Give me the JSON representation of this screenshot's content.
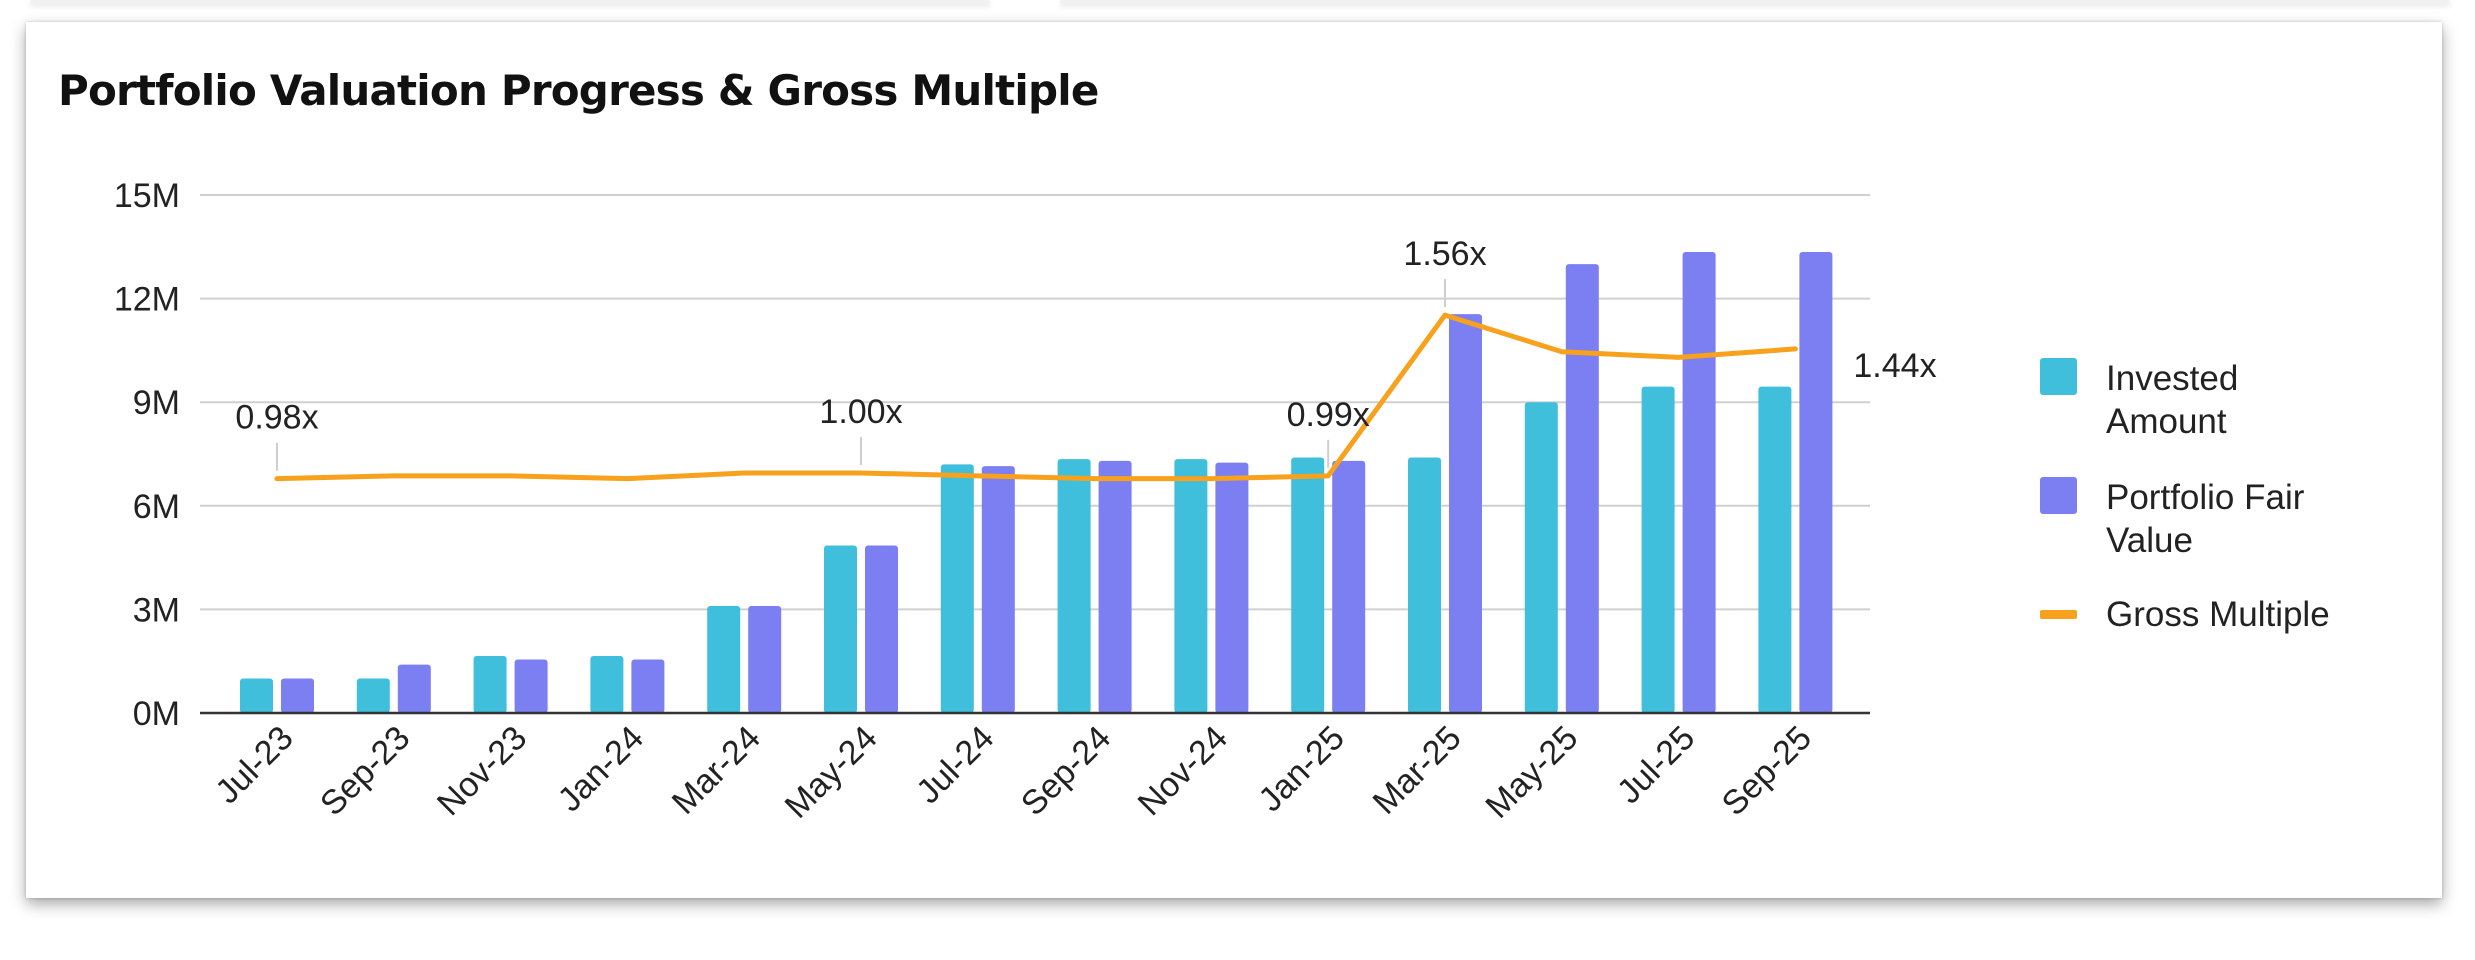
{
  "chart_data": {
    "type": "bar",
    "title": "Portfolio Valuation Progress & Gross Multiple",
    "categories": [
      "Jul-23",
      "Sep-23",
      "Nov-23",
      "Jan-24",
      "Mar-24",
      "May-24",
      "Jul-24",
      "Sep-24",
      "Nov-24",
      "Jan-25",
      "Mar-25",
      "May-25",
      "Jul-25",
      "Sep-25"
    ],
    "y_ticks": [
      "0M",
      "3M",
      "6M",
      "9M",
      "12M",
      "15M"
    ],
    "ylim": [
      0,
      15
    ],
    "y_unit": "M",
    "grid": true,
    "legend_position": "right",
    "series": [
      {
        "name": "Invested Amount",
        "type": "bar",
        "color": "#3fbfdb",
        "values": [
          1.0,
          1.0,
          1.65,
          1.65,
          3.1,
          4.85,
          7.2,
          7.35,
          7.35,
          7.4,
          7.4,
          9.0,
          9.45,
          9.45
        ]
      },
      {
        "name": "Portfolio Fair Value",
        "type": "bar",
        "color": "#7c7ff2",
        "values": [
          1.0,
          1.4,
          1.55,
          1.55,
          3.1,
          4.85,
          7.15,
          7.3,
          7.25,
          7.3,
          11.55,
          13.0,
          13.35,
          13.35
        ]
      },
      {
        "name": "Gross Multiple",
        "type": "line",
        "color": "#f7a11d",
        "values": [
          0.98,
          0.99,
          0.99,
          0.98,
          1.0,
          1.0,
          0.99,
          0.98,
          0.98,
          0.99,
          1.56,
          1.43,
          1.41,
          1.44
        ]
      }
    ],
    "annotations": [
      {
        "index": 0,
        "label": "0.98x"
      },
      {
        "index": 5,
        "label": "1.00x"
      },
      {
        "index": 9,
        "label": "0.99x"
      },
      {
        "index": 10,
        "label": "1.56x"
      },
      {
        "index": 13,
        "label": "1.44x"
      }
    ]
  }
}
